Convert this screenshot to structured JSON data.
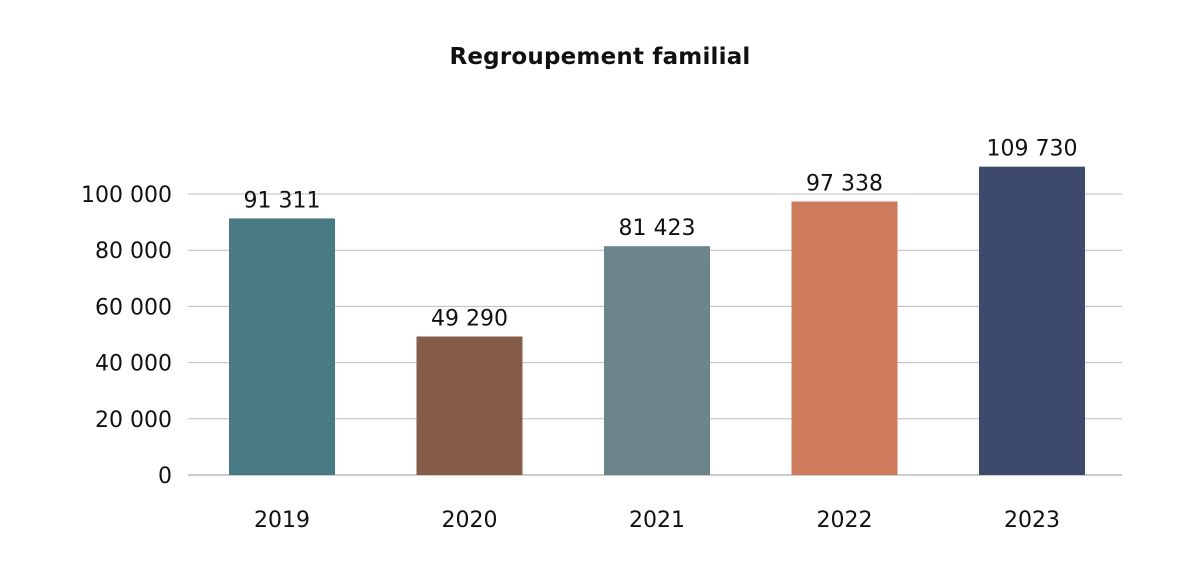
{
  "chart_data": {
    "type": "bar",
    "title": "Regroupement familial",
    "xlabel": "",
    "ylabel": "",
    "categories": [
      "2019",
      "2020",
      "2021",
      "2022",
      "2023"
    ],
    "values": [
      91311,
      49290,
      81423,
      97338,
      109730
    ],
    "value_labels": [
      "91 311",
      "49 290",
      "81 423",
      "97 338",
      "109 730"
    ],
    "bar_colors": [
      "#477a82",
      "#845c48",
      "#6c858b",
      "#cd7b5c",
      "#3d4a6b"
    ],
    "ylim": [
      0,
      100000
    ],
    "yticks": [
      0,
      20000,
      40000,
      60000,
      80000,
      100000
    ],
    "ytick_labels": [
      "0",
      "20 000",
      "40 000",
      "60 000",
      "80 000",
      "100 000"
    ],
    "grid": true,
    "legend": "none"
  }
}
